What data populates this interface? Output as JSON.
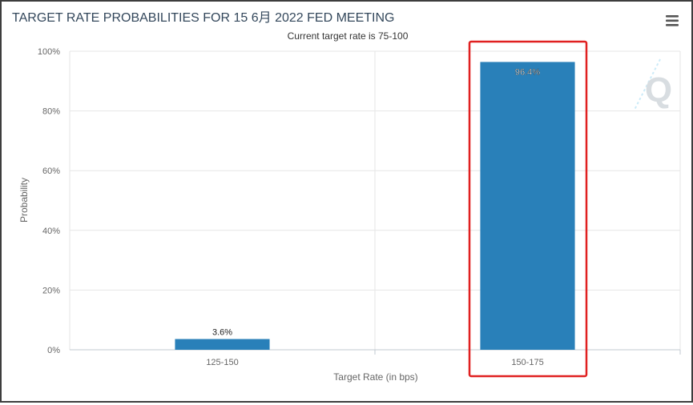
{
  "chart_data": {
    "type": "bar",
    "title": "TARGET RATE PROBABILITIES FOR 15 6月 2022 FED MEETING",
    "subtitle": "Current target rate is 75-100",
    "xlabel": "Target Rate (in bps)",
    "ylabel": "Probability",
    "categories": [
      "125-150",
      "150-175"
    ],
    "values": [
      3.6,
      96.4
    ],
    "value_labels": [
      "3.6%",
      "96.4%"
    ],
    "ylim": [
      0,
      100
    ],
    "yticks": [
      0,
      20,
      40,
      60,
      80,
      100
    ],
    "ytick_labels": [
      "0%",
      "20%",
      "40%",
      "60%",
      "80%",
      "100%"
    ],
    "grid": true,
    "bar_color": "#2980b9",
    "highlight_color": "#e02020",
    "highlighted_category": "150-175"
  },
  "watermark": "Q"
}
